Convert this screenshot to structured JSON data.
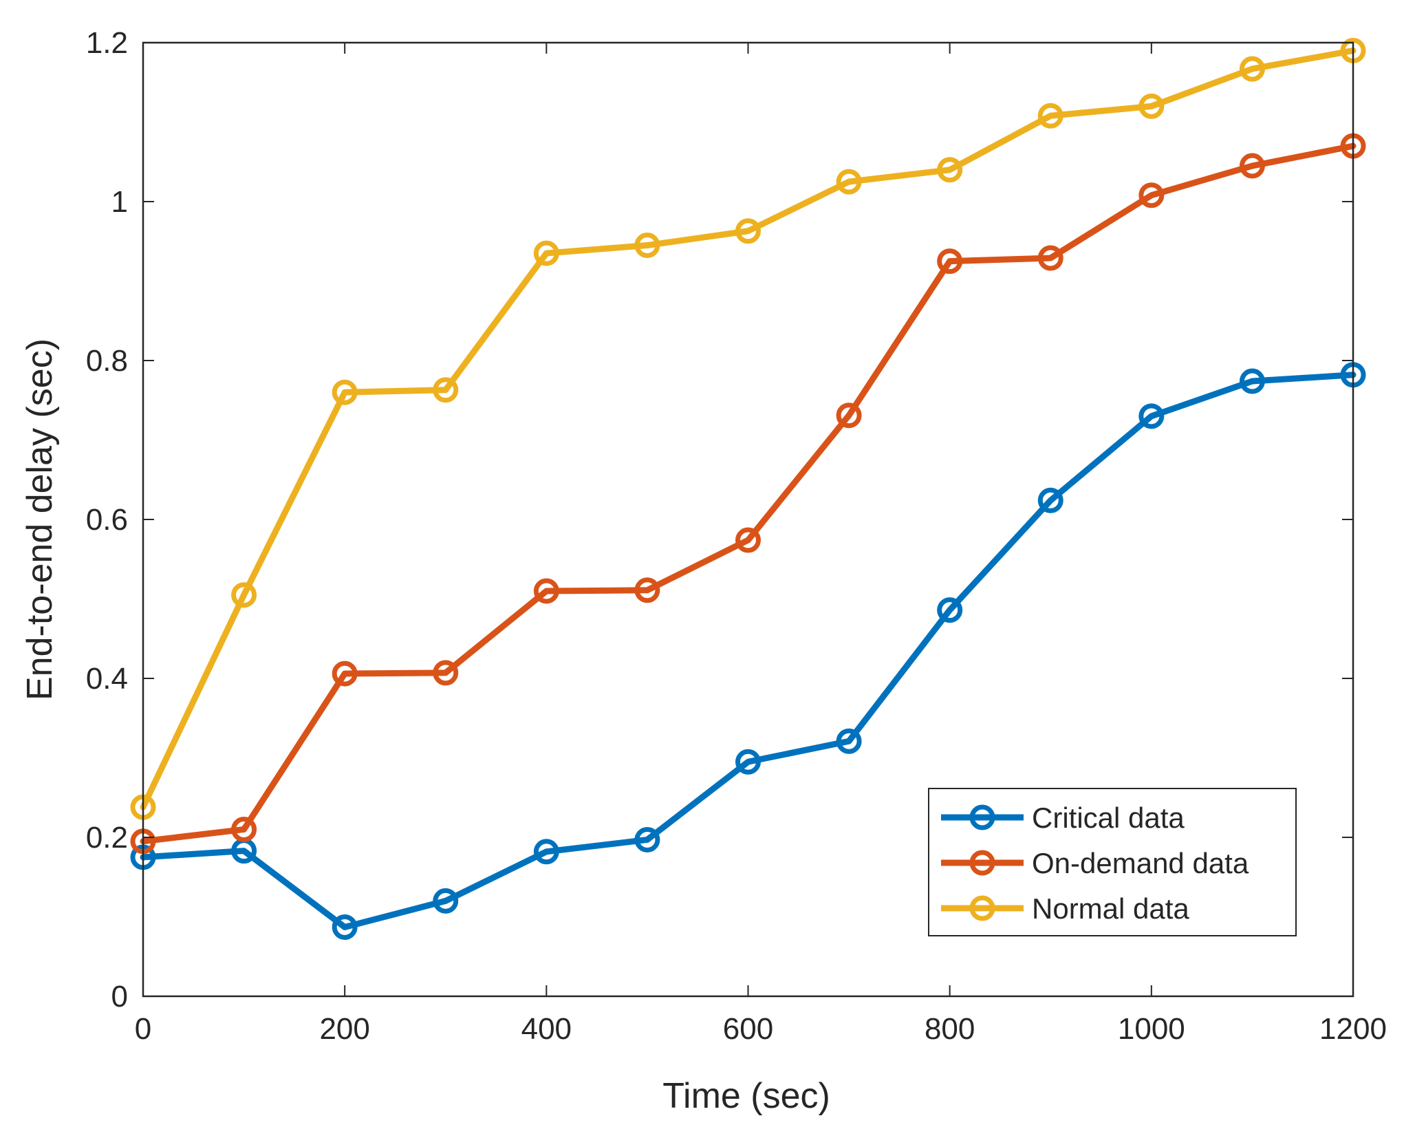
{
  "chart_data": {
    "type": "line",
    "title": "",
    "xlabel": "Time (sec)",
    "ylabel": "End-to-end delay (sec)",
    "xlim": [
      0,
      1200
    ],
    "ylim": [
      0,
      1.2
    ],
    "x": [
      0,
      100,
      200,
      300,
      400,
      500,
      600,
      700,
      800,
      900,
      1000,
      1100,
      1200
    ],
    "xticks": [
      0,
      200,
      400,
      600,
      800,
      1000,
      1200
    ],
    "xtick_labels": [
      "0",
      "200",
      "400",
      "600",
      "800",
      "1000",
      "1200"
    ],
    "yticks": [
      0,
      0.2,
      0.4,
      0.6,
      0.8,
      1,
      1.2
    ],
    "ytick_labels": [
      "0",
      "0.2",
      "0.4",
      "0.6",
      "0.8",
      "1",
      "1.2"
    ],
    "grid": false,
    "legend_position": "bottom-right",
    "series": [
      {
        "name": "Critical data",
        "color": "#0072BD",
        "marker": "circle",
        "values": [
          0.175,
          0.183,
          0.087,
          0.12,
          0.182,
          0.197,
          0.295,
          0.321,
          0.486,
          0.624,
          0.73,
          0.774,
          0.782
        ]
      },
      {
        "name": "On-demand data",
        "color": "#D95319",
        "marker": "circle",
        "values": [
          0.195,
          0.21,
          0.406,
          0.407,
          0.51,
          0.511,
          0.574,
          0.731,
          0.925,
          0.929,
          1.008,
          1.045,
          1.07
        ]
      },
      {
        "name": "Normal data",
        "color": "#EDB120",
        "marker": "circle",
        "values": [
          0.238,
          0.505,
          0.76,
          0.763,
          0.935,
          0.945,
          0.963,
          1.025,
          1.04,
          1.108,
          1.12,
          1.167,
          1.19
        ]
      }
    ]
  }
}
